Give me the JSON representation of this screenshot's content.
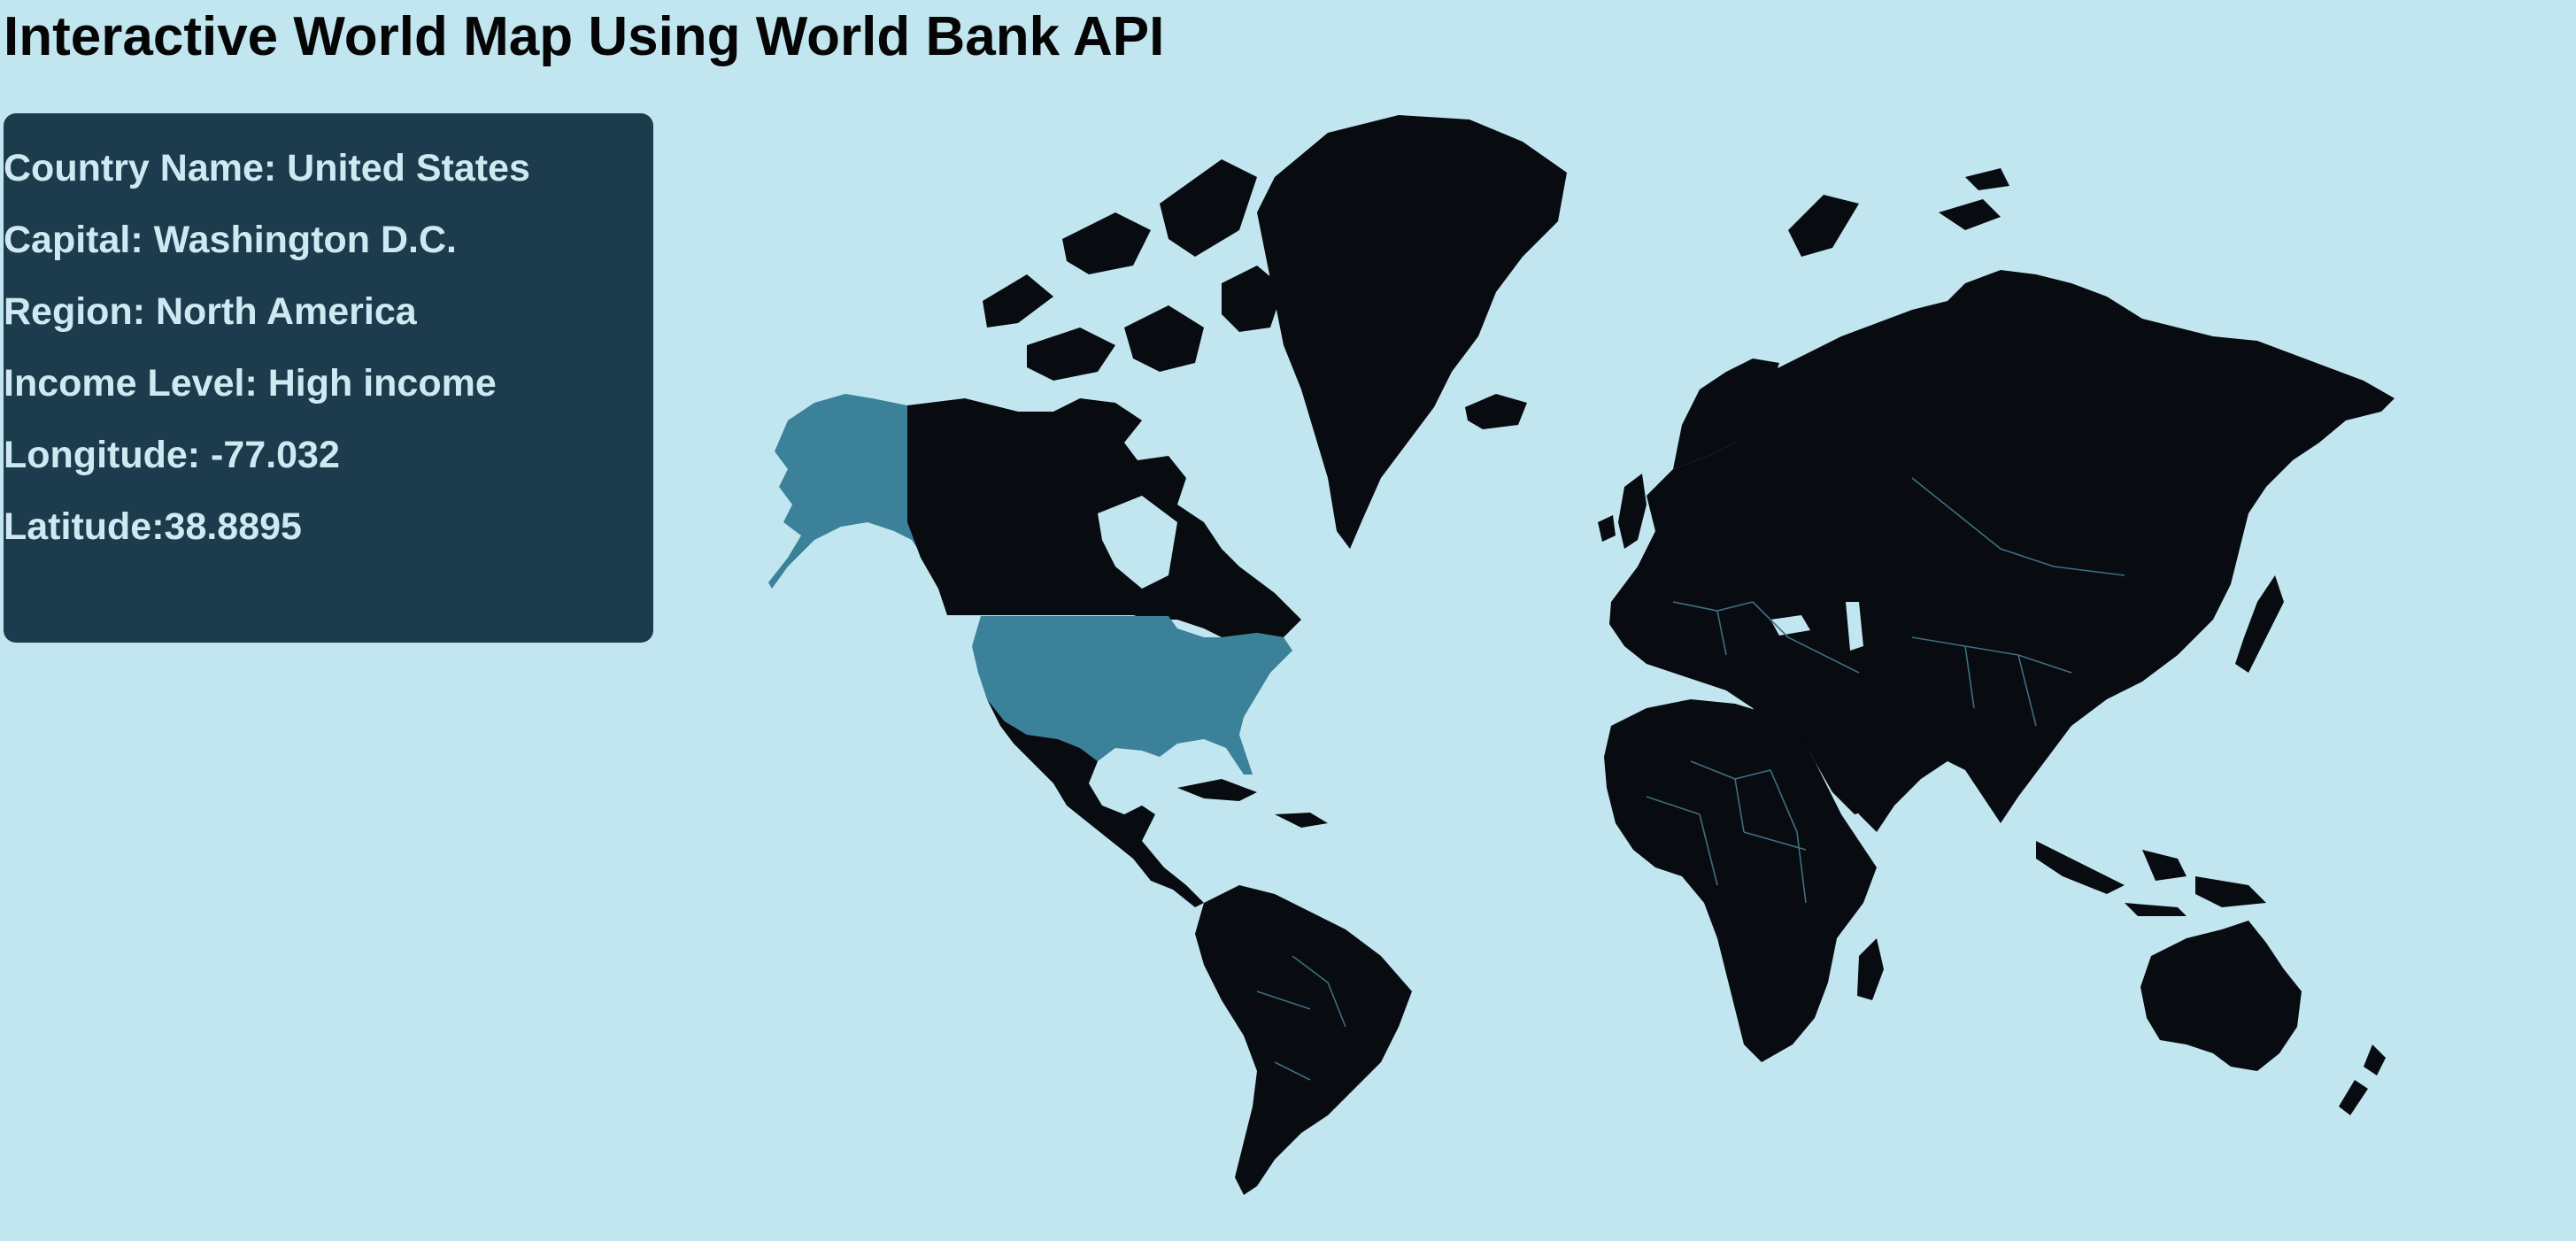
{
  "page": {
    "title": "Interactive World Map Using World Bank API"
  },
  "info": {
    "country_name": "Country Name: United States",
    "capital": "Capital: Washington D.C.",
    "region": "Region: North America",
    "income_level": "Income Level: High income",
    "longitude": "Longitude: -77.032",
    "latitude": "Latitude:38.8895"
  },
  "map": {
    "selected_country": "United States",
    "colors": {
      "background": "#c2e6f0",
      "land": "#080b10",
      "selected": "#3a8199",
      "panel": "#1c3b4c",
      "panel_text": "#cfe9f2",
      "borders": "#3d6f82"
    }
  }
}
